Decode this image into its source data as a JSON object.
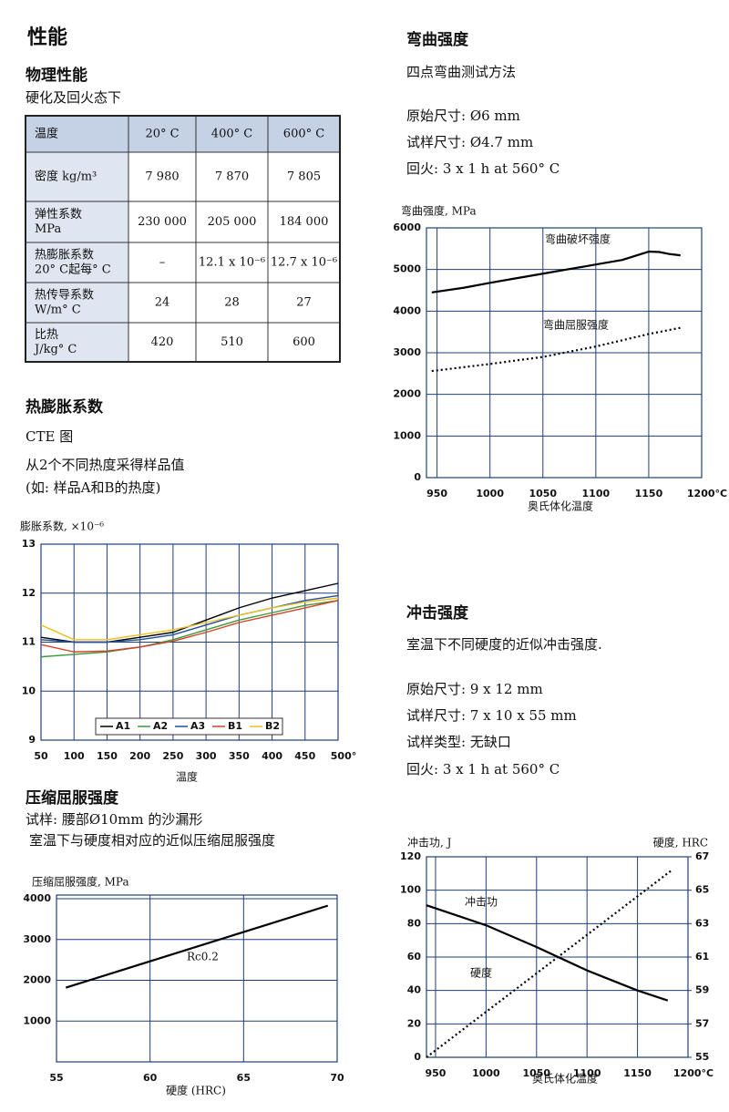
{
  "page_title": "性能",
  "physical": {
    "title": "物理性能",
    "subtitle": "硬化及回火态下",
    "table": {
      "header": [
        "温度",
        "20° C",
        "400° C",
        "600° C"
      ],
      "rows": [
        [
          [
            "密度  kg/m³"
          ],
          "7 980",
          "7 870",
          "7 805"
        ],
        [
          [
            "弹性系数",
            "MPa"
          ],
          "230 000",
          "205 000",
          "184 000"
        ],
        [
          [
            "热膨胀系数",
            "20° C起每° C"
          ],
          "–",
          "12.1 x 10⁻⁶",
          "12.7 x 10⁻⁶"
        ],
        [
          [
            "热传导系数",
            "W/m° C"
          ],
          "24",
          "28",
          "27"
        ],
        [
          [
            "比热",
            "J/kg° C"
          ],
          "420",
          "510",
          "600"
        ]
      ]
    }
  },
  "cte": {
    "title": "热膨胀系数",
    "subtitle": "CTE 图",
    "notes": [
      "从2个不同热度采得样品值",
      "(如: 样品A和B的热度)"
    ]
  },
  "compression": {
    "title": "压缩屈服强度",
    "notes": [
      "试样: 腰部Ø10mm 的沙漏形",
      "室温下与硬度相对应的近似压缩屈服强度"
    ]
  },
  "bend": {
    "title": "弯曲强度",
    "method": "四点弯曲测试方法",
    "specs": [
      "原始尺寸: Ø6 mm",
      "试样尺寸: Ø4.7 mm",
      "回火: 3 x 1 h at 560° C"
    ]
  },
  "impact": {
    "title": "冲击强度",
    "method": "室温下不同硬度的近似冲击强度.",
    "specs": [
      "原始尺寸: 9 x 12 mm",
      "试样尺寸: 7 x 10 x 55 mm",
      "试样类型: 无缺口",
      "回火: 3 x 1 h at 560° C"
    ]
  },
  "chart_data": [
    {
      "type": "line",
      "y_label": "膨胀系数, ×10⁻⁶",
      "x_label": "温度",
      "x": [
        50,
        100,
        150,
        200,
        250,
        300,
        350,
        400,
        450,
        500
      ],
      "xlim": [
        50,
        500
      ],
      "xticks": [
        50,
        100,
        150,
        200,
        250,
        300,
        350,
        400,
        450,
        {
          "value": 500,
          "label": "500°"
        }
      ],
      "ylim": [
        9,
        13
      ],
      "yticks": [
        9,
        10,
        11,
        12,
        13
      ],
      "grid": true,
      "legend": "bottom",
      "series": [
        {
          "name": "A1",
          "color": "#000000",
          "values": [
            11.1,
            11.0,
            11.0,
            11.1,
            11.2,
            11.45,
            11.7,
            11.9,
            12.05,
            12.2
          ]
        },
        {
          "name": "A2",
          "color": "#3a9a3a",
          "values": [
            10.7,
            10.75,
            10.8,
            10.9,
            11.05,
            11.25,
            11.45,
            11.6,
            11.75,
            11.85
          ]
        },
        {
          "name": "A3",
          "color": "#1f4fa0",
          "values": [
            11.05,
            11.0,
            11.0,
            11.05,
            11.15,
            11.35,
            11.55,
            11.7,
            11.85,
            11.95
          ]
        },
        {
          "name": "B1",
          "color": "#d8402a",
          "values": [
            10.95,
            10.8,
            10.82,
            10.9,
            11.02,
            11.2,
            11.4,
            11.55,
            11.7,
            11.85
          ]
        },
        {
          "name": "B2",
          "color": "#f0c020",
          "values": [
            11.35,
            11.05,
            11.05,
            11.15,
            11.25,
            11.4,
            11.55,
            11.7,
            11.82,
            11.9
          ]
        }
      ]
    },
    {
      "type": "line",
      "y_label": "压缩屈服强度, MPa",
      "x_label": "硬度 (HRC)",
      "xlim": [
        55,
        70
      ],
      "xticks": [
        55,
        60,
        65,
        70
      ],
      "ylim": [
        0,
        4090
      ],
      "yticks": [
        1000,
        2000,
        3000,
        4000
      ],
      "grid": true,
      "legend": "inline",
      "series": [
        {
          "name": "Rc0.2",
          "color": "#000000",
          "style": "solid",
          "x": [
            55.5,
            69.5
          ],
          "values": [
            1820,
            3830
          ]
        }
      ]
    },
    {
      "type": "line",
      "y_label": "弯曲强度, MPa",
      "x_label": "奥氏体化温度",
      "xlim": [
        940,
        1200
      ],
      "xticks": [
        950,
        1000,
        1050,
        1100,
        1150,
        {
          "value": 1200,
          "label": "1200°C"
        }
      ],
      "ylim": [
        0,
        6000
      ],
      "yticks": [
        0,
        1000,
        2000,
        3000,
        4000,
        5000,
        6000
      ],
      "grid": true,
      "legend": "inline",
      "series": [
        {
          "name": "弯曲破坏强度",
          "color": "#000000",
          "style": "solid",
          "x": [
            945,
            975,
            1000,
            1025,
            1050,
            1075,
            1100,
            1125,
            1140,
            1150,
            1160,
            1170,
            1180
          ],
          "values": [
            4450,
            4560,
            4680,
            4790,
            4900,
            5010,
            5120,
            5230,
            5350,
            5430,
            5420,
            5370,
            5340
          ]
        },
        {
          "name": "弯曲屈服强度",
          "color": "#000000",
          "style": "dotted",
          "x": [
            945,
            1000,
            1050,
            1100,
            1150,
            1180
          ],
          "values": [
            2560,
            2730,
            2900,
            3150,
            3450,
            3600
          ]
        }
      ]
    },
    {
      "type": "line",
      "y_label": "冲击功, J",
      "y2_label": "硬度, HRC",
      "x_label": "奥氏体化温度",
      "xlim": [
        941,
        1200
      ],
      "xticks": [
        950,
        1000,
        1050,
        1100,
        1150,
        {
          "value": 1200,
          "label": "1200°C"
        }
      ],
      "ylim": [
        0,
        120
      ],
      "yticks": [
        0,
        20,
        40,
        60,
        80,
        100,
        120
      ],
      "y2lim": [
        55,
        67
      ],
      "y2ticks": [
        55,
        57,
        59,
        61,
        63,
        65,
        67
      ],
      "grid": true,
      "legend": "inline",
      "series": [
        {
          "name": "冲击功",
          "color": "#000000",
          "style": "solid",
          "x": [
            941,
            1000,
            1050,
            1100,
            1150,
            1180
          ],
          "values": [
            91,
            79,
            66,
            52,
            40,
            34
          ]
        },
        {
          "name": "硬度",
          "color": "#000000",
          "style": "dotted",
          "axis": "y2",
          "x": [
            941,
            1184
          ],
          "values": [
            55,
            66.2
          ]
        }
      ]
    }
  ]
}
